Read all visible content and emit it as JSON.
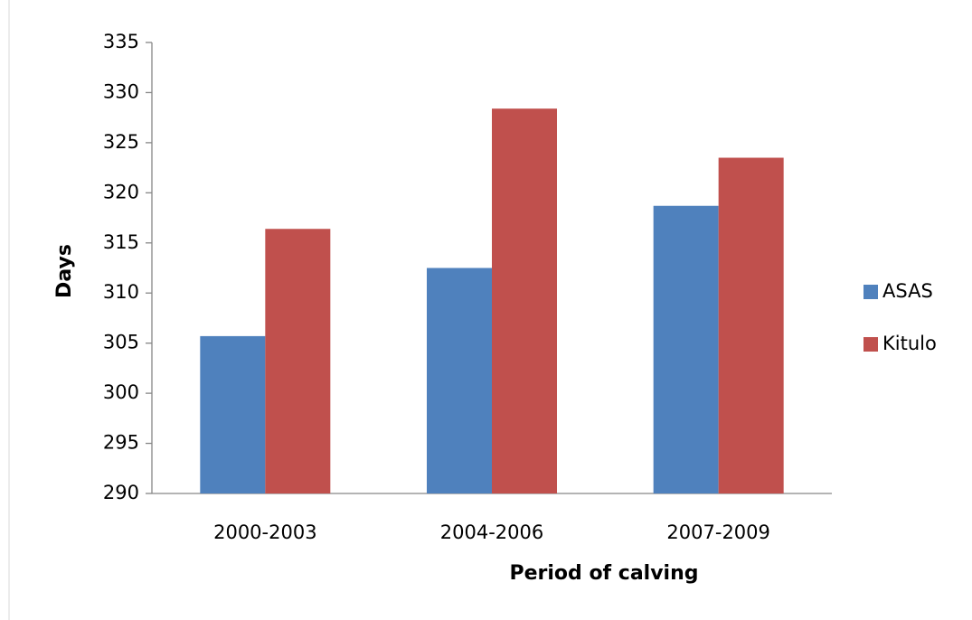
{
  "chart_data": {
    "type": "bar",
    "x_label": "Period of calving",
    "y_label": "Days",
    "categories": [
      "2000-2003",
      "2004-2006",
      "2007-2009"
    ],
    "series": [
      {
        "name": "ASAS",
        "color": "#4f81bd",
        "values": [
          305.7,
          312.5,
          318.7
        ]
      },
      {
        "name": "Kitulo",
        "color": "#c0504d",
        "values": [
          316.4,
          328.4,
          323.5
        ]
      }
    ],
    "ylim": [
      290,
      335
    ],
    "yticks": [
      290,
      295,
      300,
      305,
      310,
      315,
      320,
      325,
      330,
      335
    ],
    "grid": false,
    "legend": "right"
  }
}
